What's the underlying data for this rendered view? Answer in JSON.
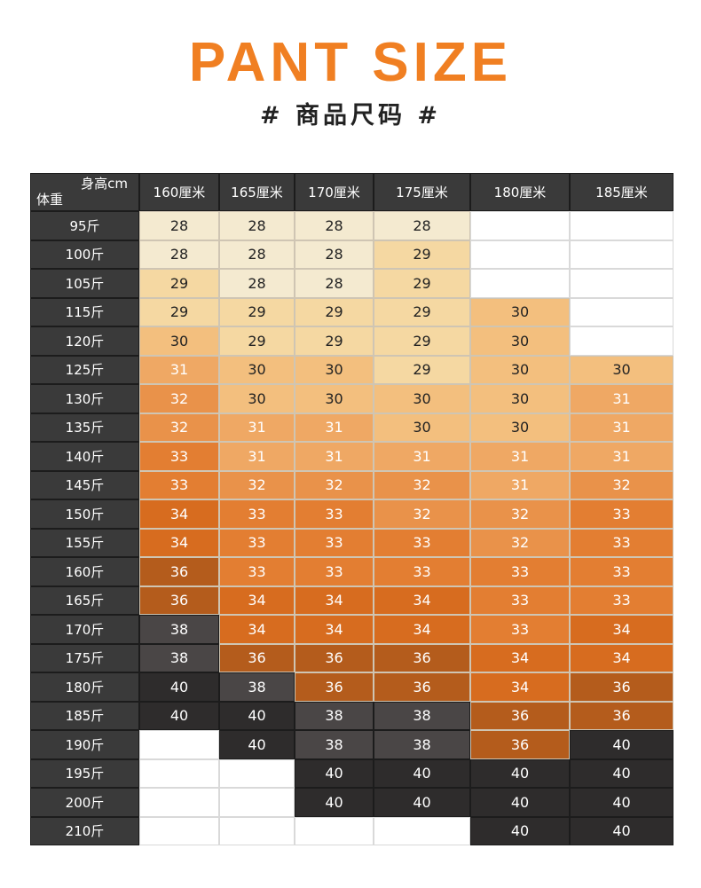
{
  "title": "PANT SIZE",
  "subtitle": "# 商品尺码 #",
  "table": {
    "corner_height_label": "身高cm",
    "corner_weight_label": "体重",
    "heights": [
      "160厘米",
      "165厘米",
      "170厘米",
      "175厘米",
      "180厘米",
      "185厘米"
    ],
    "weights": [
      "95斤",
      "100斤",
      "105斤",
      "115斤",
      "120斤",
      "125斤",
      "130斤",
      "135斤",
      "140斤",
      "145斤",
      "150斤",
      "155斤",
      "160斤",
      "165斤",
      "170斤",
      "175斤",
      "180斤",
      "185斤",
      "190斤",
      "195斤",
      "200斤",
      "210斤"
    ],
    "sizes": [
      [
        "28",
        "28",
        "28",
        "28",
        "",
        ""
      ],
      [
        "28",
        "28",
        "28",
        "29",
        "",
        ""
      ],
      [
        "29",
        "28",
        "28",
        "29",
        "",
        ""
      ],
      [
        "29",
        "29",
        "29",
        "29",
        "30",
        ""
      ],
      [
        "30",
        "29",
        "29",
        "29",
        "30",
        ""
      ],
      [
        "31",
        "30",
        "30",
        "29",
        "30",
        "30"
      ],
      [
        "32",
        "30",
        "30",
        "30",
        "30",
        "31"
      ],
      [
        "32",
        "31",
        "31",
        "30",
        "30",
        "31"
      ],
      [
        "33",
        "31",
        "31",
        "31",
        "31",
        "31"
      ],
      [
        "33",
        "32",
        "32",
        "32",
        "31",
        "32"
      ],
      [
        "34",
        "33",
        "33",
        "32",
        "32",
        "33"
      ],
      [
        "34",
        "33",
        "33",
        "33",
        "32",
        "33"
      ],
      [
        "36",
        "33",
        "33",
        "33",
        "33",
        "33"
      ],
      [
        "36",
        "34",
        "34",
        "34",
        "33",
        "33"
      ],
      [
        "38",
        "34",
        "34",
        "34",
        "33",
        "34"
      ],
      [
        "38",
        "36",
        "36",
        "36",
        "34",
        "34"
      ],
      [
        "40",
        "38",
        "36",
        "36",
        "34",
        "36"
      ],
      [
        "40",
        "40",
        "38",
        "38",
        "36",
        "36"
      ],
      [
        "",
        "40",
        "38",
        "38",
        "36",
        "40"
      ],
      [
        "",
        "",
        "40",
        "40",
        "40",
        "40"
      ],
      [
        "",
        "",
        "40",
        "40",
        "40",
        "40"
      ],
      [
        "",
        "",
        "",
        "",
        "40",
        "40"
      ]
    ],
    "size_colors": {
      "28": "#f4ead0",
      "29": "#f5d8a2",
      "30": "#f3bf7e",
      "31": "#efa864",
      "32": "#e9924a",
      "33": "#e37e32",
      "34": "#d76c1f",
      "36": "#b45c1c",
      "38": "#4a4646",
      "40": "#2e2c2c"
    }
  }
}
